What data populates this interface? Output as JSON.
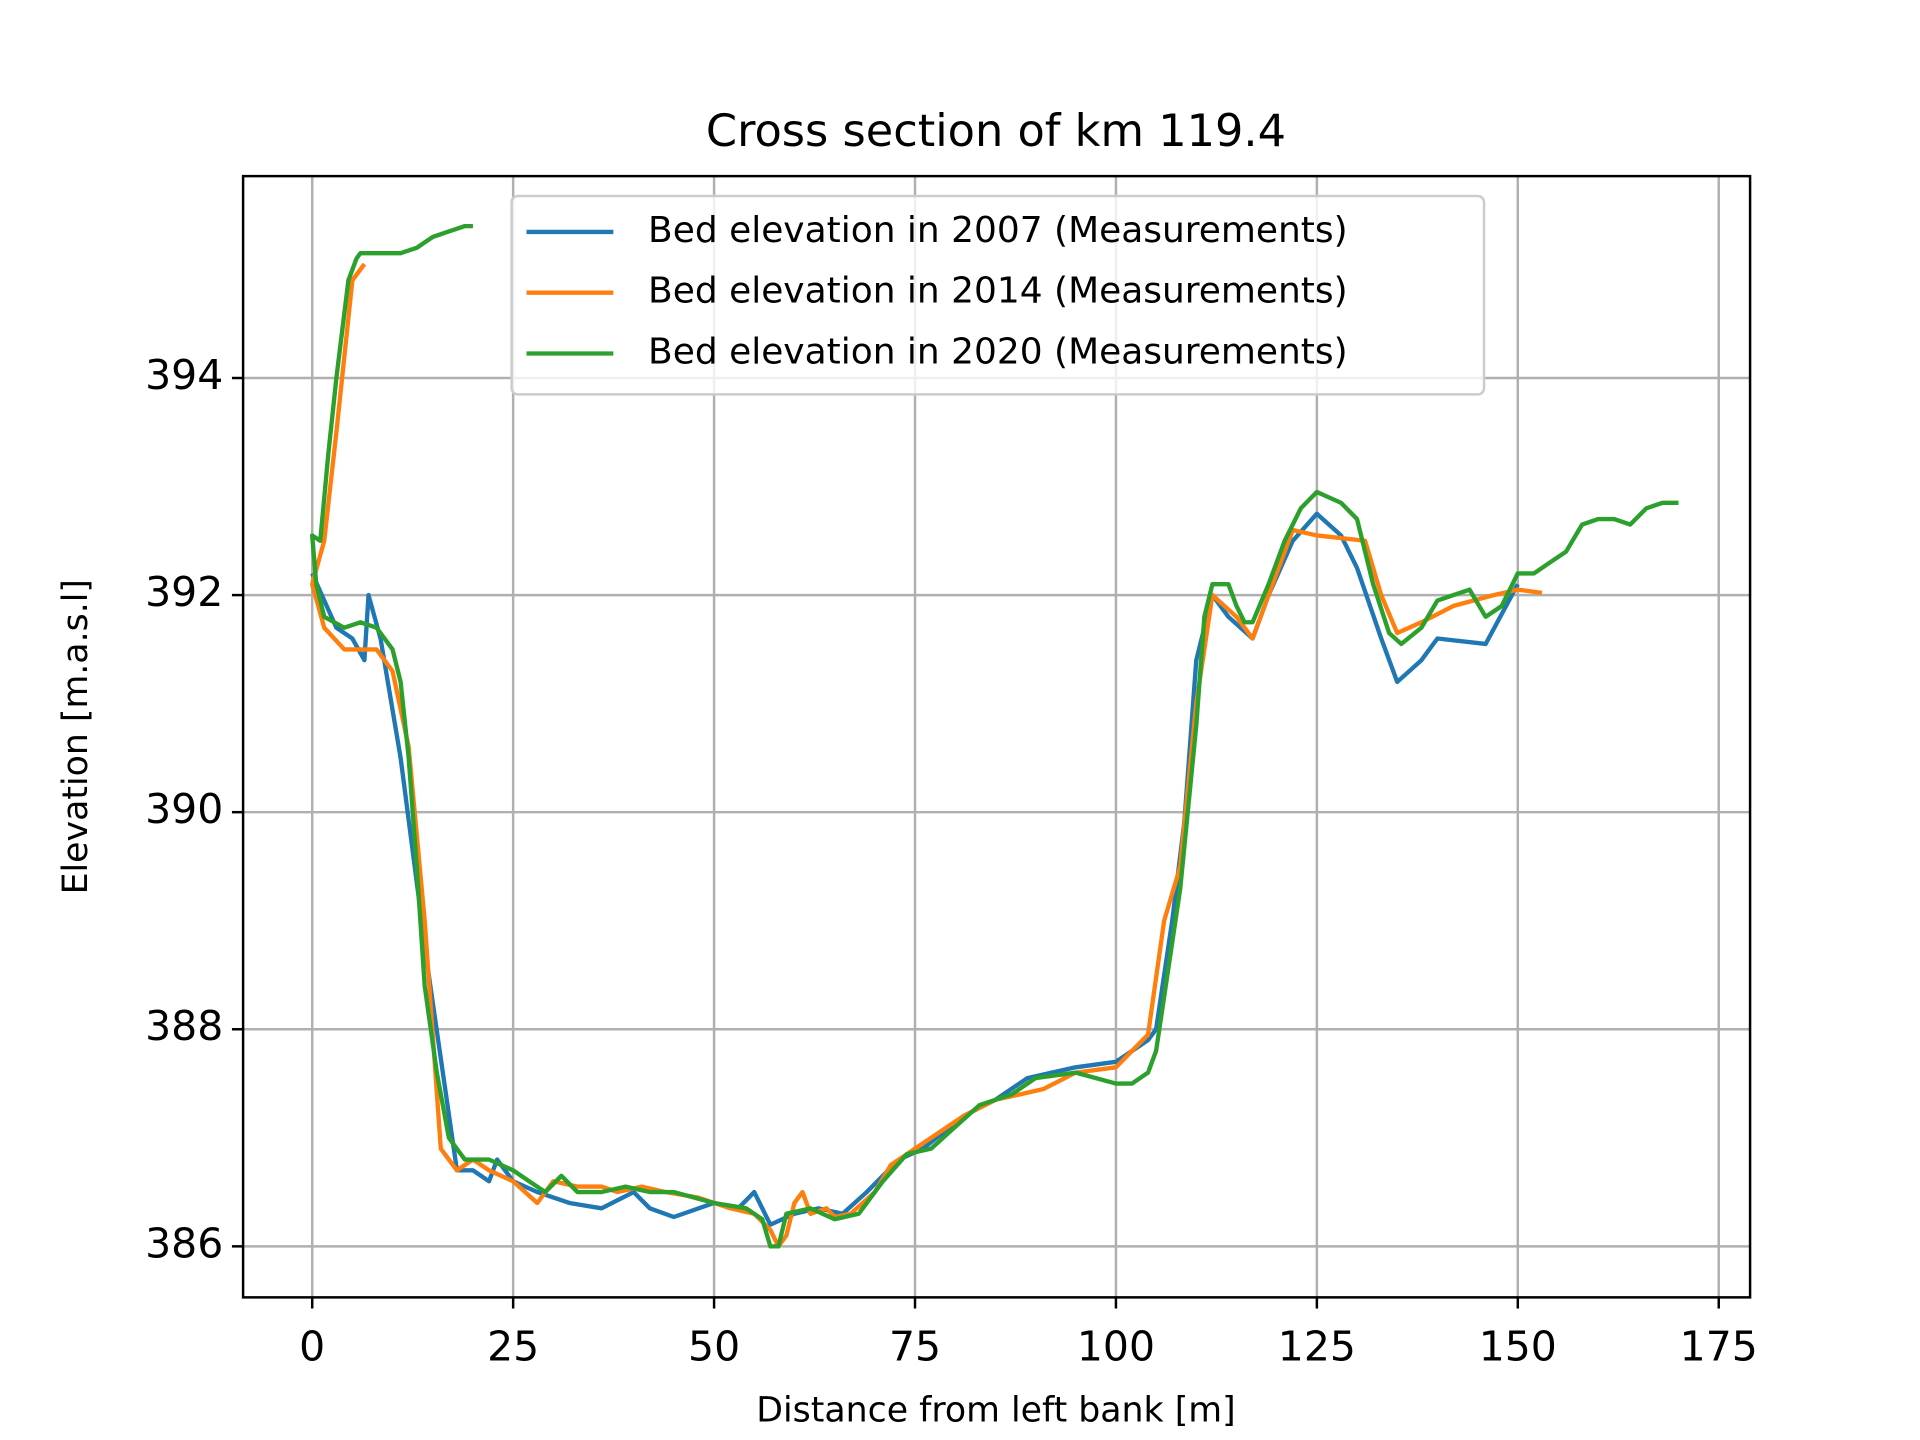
{
  "chart_data": {
    "type": "line",
    "title": "Cross section of km 119.4",
    "x_label": "Distance from left bank [m]",
    "y_label": "Elevation [m.a.s.l]",
    "xlim": [
      -8.6,
      178.9
    ],
    "ylim": [
      385.53,
      395.86
    ],
    "xticks": [
      0,
      25,
      50,
      75,
      100,
      125,
      150,
      175
    ],
    "yticks": [
      386,
      388,
      390,
      392,
      394
    ],
    "grid": true,
    "legend": "upper center",
    "series": [
      {
        "name": "Bed elevation in 2007 (Measurements)",
        "color": "#1f77b4",
        "x": [
          0,
          3,
          5,
          6.5,
          7,
          8.5,
          11,
          14.5,
          18,
          20,
          22,
          23,
          25,
          28,
          32,
          36,
          40,
          42,
          45,
          50,
          53,
          55,
          57,
          60,
          63,
          66,
          69,
          73,
          76,
          81,
          85,
          89,
          92,
          95,
          100,
          104,
          105,
          107,
          108.5,
          110,
          112,
          114,
          117,
          119,
          122,
          125,
          128,
          130,
          133,
          135,
          138,
          140,
          146,
          150
        ],
        "values": [
          392.2,
          391.7,
          391.6,
          391.4,
          392.0,
          391.6,
          390.5,
          388.5,
          386.7,
          386.7,
          386.6,
          386.8,
          386.6,
          386.5,
          386.4,
          386.35,
          386.5,
          386.35,
          386.27,
          386.4,
          386.35,
          386.5,
          386.2,
          386.3,
          386.35,
          386.3,
          386.5,
          386.8,
          386.9,
          387.2,
          387.35,
          387.55,
          387.6,
          387.65,
          387.7,
          387.9,
          388.0,
          389.0,
          389.9,
          391.4,
          392.0,
          391.8,
          391.6,
          392.0,
          392.5,
          392.75,
          392.55,
          392.25,
          391.6,
          391.2,
          391.4,
          391.6,
          391.55,
          392.1
        ]
      },
      {
        "name": "Bed elevation in 2014 (Measurements)",
        "color": "#ff7f0e",
        "x": [
          6.5,
          5,
          3,
          1.5,
          0,
          1.5,
          4,
          8,
          10,
          12,
          14,
          16,
          18,
          20,
          22,
          25,
          28,
          30,
          33,
          36,
          38,
          41,
          44,
          48,
          52,
          55,
          57,
          58,
          59,
          60,
          61,
          62,
          64,
          65,
          67,
          70,
          72,
          75,
          78,
          81,
          85,
          88,
          91,
          95,
          100,
          104,
          106,
          108,
          110,
          112,
          115,
          117,
          119,
          122,
          125,
          131,
          133,
          135,
          138,
          142,
          147,
          150,
          153
        ],
        "values": [
          395.05,
          394.9,
          393.5,
          392.5,
          392.1,
          391.7,
          391.5,
          391.5,
          391.3,
          390.6,
          389,
          386.9,
          386.7,
          386.8,
          386.7,
          386.6,
          386.4,
          386.6,
          386.55,
          386.55,
          386.5,
          386.55,
          386.5,
          386.45,
          386.35,
          386.3,
          386.15,
          386.0,
          386.1,
          386.4,
          386.5,
          386.3,
          386.35,
          386.27,
          386.3,
          386.5,
          386.75,
          386.9,
          387.05,
          387.2,
          387.35,
          387.4,
          387.45,
          387.6,
          387.65,
          387.95,
          389,
          389.5,
          391,
          392,
          391.8,
          391.6,
          392,
          392.6,
          392.55,
          392.5,
          392,
          391.65,
          391.75,
          391.9,
          392,
          392.05,
          392.02
        ]
      },
      {
        "name": "Bed elevation in 2020 (Measurements)",
        "color": "#2ca02c",
        "x": [
          20,
          19,
          17,
          15,
          13,
          11,
          9,
          6,
          5.5,
          4.5,
          3,
          2,
          1,
          0,
          0.5,
          1.5,
          4,
          6,
          8,
          10,
          11,
          12,
          13,
          14,
          15.5,
          17,
          19,
          22,
          25,
          27,
          29,
          31,
          33,
          36,
          39,
          42,
          45,
          50,
          54,
          56,
          57,
          58,
          59,
          62,
          65,
          68,
          71,
          74,
          77,
          80,
          83,
          87,
          90,
          95,
          100,
          102,
          104,
          105,
          106,
          108,
          110,
          111,
          112,
          114,
          115,
          116,
          117,
          119,
          121,
          123,
          125,
          128,
          130,
          132,
          134,
          135.5,
          138,
          140,
          142,
          144,
          146,
          148,
          150,
          152,
          154,
          156,
          158,
          160,
          162,
          164,
          166,
          168,
          170
        ],
        "values": [
          395.4,
          395.4,
          395.35,
          395.3,
          395.2,
          395.15,
          395.15,
          395.15,
          395.1,
          394.9,
          394,
          393.3,
          392.5,
          392.55,
          392.1,
          391.8,
          391.7,
          391.75,
          391.7,
          391.5,
          391.2,
          390.5,
          389.5,
          388.4,
          387.6,
          387,
          386.8,
          386.8,
          386.7,
          386.6,
          386.5,
          386.65,
          386.5,
          386.5,
          386.55,
          386.5,
          386.5,
          386.4,
          386.35,
          386.25,
          386.0,
          386.0,
          386.3,
          386.35,
          386.25,
          386.3,
          386.6,
          386.85,
          386.9,
          387.1,
          387.3,
          387.4,
          387.55,
          387.6,
          387.5,
          387.5,
          387.6,
          387.8,
          388.3,
          389.3,
          390.8,
          391.8,
          392.1,
          392.1,
          391.9,
          391.75,
          391.75,
          392.1,
          392.5,
          392.8,
          392.95,
          392.85,
          392.7,
          392.1,
          391.65,
          391.55,
          391.7,
          391.95,
          392,
          392.05,
          391.8,
          391.9,
          392.2,
          392.2,
          392.3,
          392.4,
          392.65,
          392.7,
          392.7,
          392.65,
          392.8,
          392.85,
          392.85
        ]
      }
    ]
  }
}
